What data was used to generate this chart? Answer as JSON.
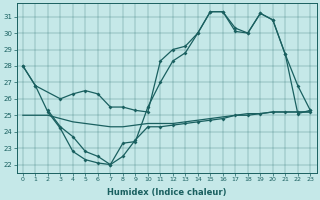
{
  "xlabel": "Humidex (Indice chaleur)",
  "xlim": [
    -0.5,
    23.5
  ],
  "ylim": [
    21.5,
    31.8
  ],
  "yticks": [
    22,
    23,
    24,
    25,
    26,
    27,
    28,
    29,
    30,
    31
  ],
  "xticks": [
    0,
    1,
    2,
    3,
    4,
    5,
    6,
    7,
    8,
    9,
    10,
    11,
    12,
    13,
    14,
    15,
    16,
    17,
    18,
    19,
    20,
    21,
    22,
    23
  ],
  "bg_color": "#c5e8e8",
  "line_color": "#1a6060",
  "line1_x": [
    0,
    1,
    2,
    3,
    4,
    5,
    6,
    7,
    8,
    9,
    10,
    11,
    12,
    13,
    14,
    15,
    16,
    17,
    18,
    19,
    20,
    21,
    22,
    23
  ],
  "line1_y": [
    28.0,
    26.8,
    25.2,
    24.2,
    22.8,
    22.3,
    22.1,
    22.0,
    23.3,
    23.4,
    25.5,
    27.0,
    28.3,
    28.8,
    30.0,
    31.3,
    31.3,
    30.3,
    30.0,
    31.2,
    30.8,
    28.7,
    26.8,
    25.3
  ],
  "line2_x": [
    0,
    1,
    3,
    4,
    5,
    6,
    7,
    8,
    9,
    10,
    11,
    12,
    13,
    14,
    15,
    16,
    17,
    18,
    19,
    20,
    21,
    22,
    23
  ],
  "line2_y": [
    28.0,
    26.8,
    26.0,
    26.3,
    26.5,
    26.3,
    25.5,
    25.5,
    25.3,
    25.2,
    28.3,
    29.0,
    29.2,
    30.0,
    31.3,
    31.3,
    30.1,
    30.0,
    31.2,
    30.8,
    28.7,
    25.1,
    25.3
  ],
  "line3_x": [
    2,
    3,
    4,
    5,
    6,
    7,
    8,
    9,
    10,
    11,
    12,
    13,
    14,
    15,
    16,
    17,
    18,
    19,
    20,
    21,
    22,
    23
  ],
  "line3_y": [
    25.3,
    24.3,
    23.7,
    22.8,
    22.5,
    22.0,
    22.5,
    23.5,
    24.3,
    24.3,
    24.4,
    24.5,
    24.6,
    24.7,
    24.8,
    25.0,
    25.0,
    25.1,
    25.2,
    25.2,
    25.2,
    25.2
  ],
  "line4_x": [
    0,
    1,
    2,
    3,
    4,
    5,
    6,
    7,
    8,
    9,
    10,
    11,
    12,
    13,
    14,
    15,
    16,
    17,
    18,
    19,
    20,
    21,
    22,
    23
  ],
  "line4_y": [
    25.0,
    25.0,
    25.0,
    24.8,
    24.6,
    24.5,
    24.4,
    24.3,
    24.3,
    24.4,
    24.5,
    24.5,
    24.5,
    24.6,
    24.7,
    24.8,
    24.9,
    25.0,
    25.1,
    25.1,
    25.2,
    25.2,
    25.2,
    25.2
  ]
}
